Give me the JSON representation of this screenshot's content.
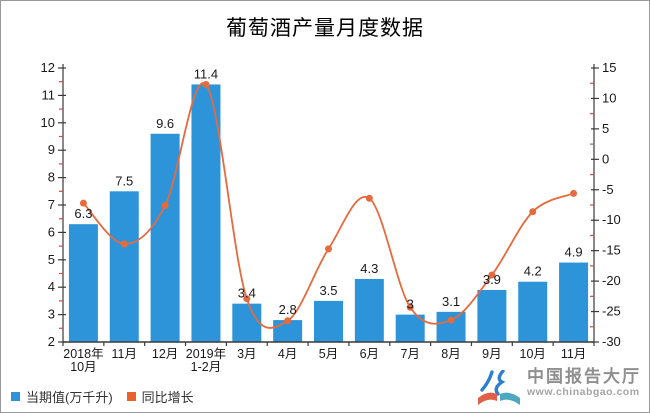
{
  "chart_data": {
    "type": "bar+line",
    "title": "葡萄酒产量月度数据",
    "categories": [
      "2018年\n10月",
      "11月",
      "12月",
      "2019年\n1-2月",
      "3月",
      "4月",
      "5月",
      "6月",
      "7月",
      "8月",
      "9月",
      "10月",
      "11月"
    ],
    "series": [
      {
        "name": "当期值(万千升)",
        "type": "bar",
        "axis": "left",
        "color": "#2E94DA",
        "values": [
          6.3,
          7.5,
          9.6,
          11.4,
          3.4,
          2.8,
          3.5,
          4.3,
          3,
          3.1,
          3.9,
          4.2,
          4.9
        ],
        "labels": [
          "6.3",
          "7.5",
          "9.6",
          "11.4",
          "3.4",
          "2.8",
          "3.5",
          "4.3",
          "3",
          "3.1",
          "3.9",
          "4.2",
          "4.9"
        ]
      },
      {
        "name": "同比增长",
        "type": "line",
        "axis": "right",
        "color": "#E56A3D",
        "values": [
          -7.2,
          -13.9,
          -7.6,
          12.3,
          -22.9,
          -26.5,
          -14.7,
          -6.4,
          -24.3,
          -26.4,
          -19,
          -8.6,
          -5.6
        ]
      }
    ],
    "axes": {
      "left": {
        "min": 2,
        "max": 12,
        "step": 1,
        "minor_step": 0.5
      },
      "right": {
        "min": -30,
        "max": 15,
        "step": 5,
        "minor_step": 2.5
      }
    },
    "grid": false,
    "legend_position": "bottom-left"
  },
  "legend": {
    "bar_label": "当期值(万千升)",
    "line_label": "同比增长"
  },
  "watermark": {
    "name": "中国报告大厅",
    "url_text": "www.chinabgao.com"
  },
  "colors": {
    "bar": "#2E94DA",
    "line": "#E56A3D",
    "minor_tick": "#C9504B",
    "axis": "#3a3a3a",
    "label_text": "#1a1a1a"
  }
}
